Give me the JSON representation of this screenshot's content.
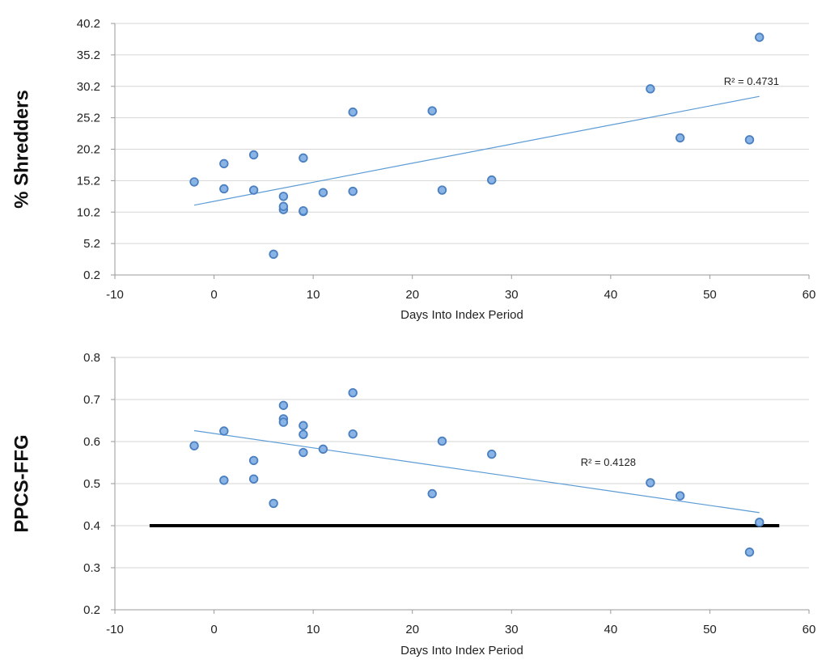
{
  "chart_data": [
    {
      "type": "scatter",
      "title": "",
      "xlabel": "Days Into Index Period",
      "ylabel": "% Shredders",
      "xlim": [
        -10,
        60
      ],
      "ylim": [
        0.2,
        40.2
      ],
      "xticks": [
        -10,
        0,
        10,
        20,
        30,
        40,
        50,
        60
      ],
      "yticks": [
        0.2,
        5.2,
        10.2,
        15.2,
        20.2,
        25.2,
        30.2,
        35.2,
        40.2
      ],
      "grid": "horizontal",
      "series": [
        {
          "name": "% Shredders",
          "x": [
            -2,
            1,
            1,
            4,
            4,
            6,
            7,
            7,
            7,
            9,
            9,
            9,
            11,
            14,
            14,
            22,
            23,
            28,
            44,
            47,
            54,
            55
          ],
          "y": [
            15.0,
            17.9,
            13.9,
            19.3,
            13.7,
            3.5,
            12.7,
            10.6,
            11.1,
            18.8,
            10.3,
            10.4,
            13.3,
            26.1,
            13.5,
            26.3,
            13.7,
            15.3,
            29.8,
            22.0,
            21.7,
            38.0
          ]
        }
      ],
      "trendline": {
        "x": [
          -2,
          55
        ],
        "y": [
          11.3,
          28.6
        ],
        "label": "R² = 0.4731"
      }
    },
    {
      "type": "scatter",
      "title": "",
      "xlabel": "Days Into Index Period",
      "ylabel": "PPCS-FFG",
      "xlim": [
        -10,
        60
      ],
      "ylim": [
        0.2,
        0.8
      ],
      "xticks": [
        -10,
        0,
        10,
        20,
        30,
        40,
        50,
        60
      ],
      "yticks": [
        0.2,
        0.3,
        0.4,
        0.5,
        0.6,
        0.7,
        0.8
      ],
      "grid": "horizontal",
      "series": [
        {
          "name": "PPCS-FFG",
          "x": [
            -2,
            1,
            1,
            4,
            4,
            6,
            7,
            7,
            7,
            9,
            9,
            9,
            11,
            14,
            14,
            22,
            23,
            28,
            44,
            47,
            54,
            55
          ],
          "y": [
            0.59,
            0.625,
            0.508,
            0.555,
            0.511,
            0.453,
            0.686,
            0.654,
            0.646,
            0.638,
            0.617,
            0.574,
            0.582,
            0.716,
            0.618,
            0.476,
            0.601,
            0.57,
            0.502,
            0.471,
            0.337,
            0.408
          ]
        }
      ],
      "trendline": {
        "x": [
          -2,
          55
        ],
        "y": [
          0.626,
          0.431
        ],
        "label": "R² = 0.4128"
      },
      "reference_line": {
        "y": 0.4,
        "x": [
          -6.5,
          57
        ]
      }
    }
  ]
}
